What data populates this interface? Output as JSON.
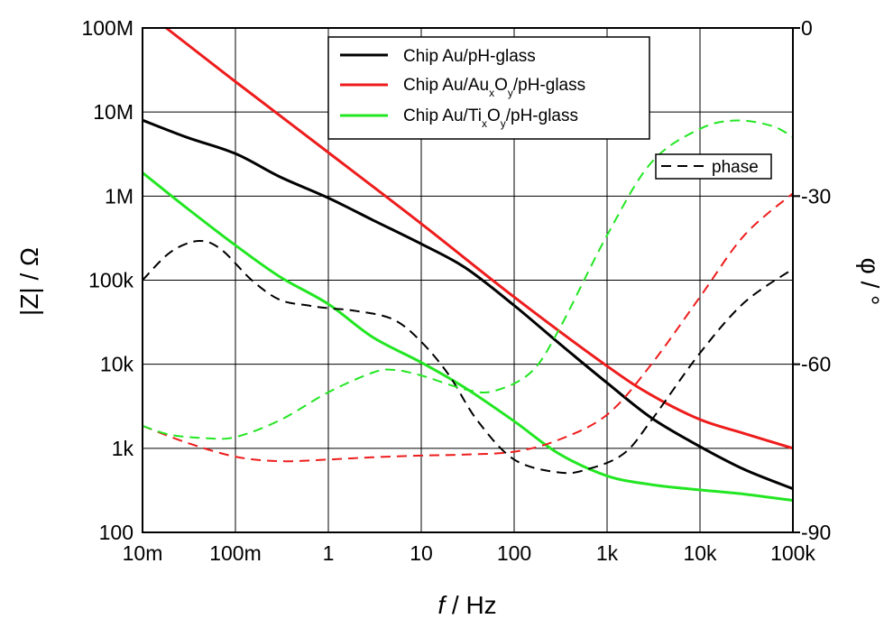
{
  "chart_data": {
    "type": "line",
    "x_axis": {
      "label_italic": "f",
      "label_rest": " / Hz",
      "scale": "log",
      "range": [
        0.01,
        100000
      ],
      "tick_values": [
        0.01,
        0.1,
        1,
        10,
        100,
        1000,
        10000,
        100000
      ],
      "tick_labels": [
        "10m",
        "100m",
        "1",
        "10",
        "100",
        "1k",
        "10k",
        "100k"
      ]
    },
    "y_left": {
      "label": "|Z| / Ω",
      "scale": "log",
      "range": [
        100,
        100000000
      ],
      "tick_values": [
        100,
        1000,
        10000,
        100000,
        1000000,
        10000000,
        100000000
      ],
      "tick_labels": [
        "100",
        "1k",
        "10k",
        "100k",
        "1M",
        "10M",
        "100M"
      ]
    },
    "y_right": {
      "label": "φ / °",
      "scale": "linear",
      "range": [
        -90,
        0
      ],
      "tick_values": [
        -90,
        -60,
        -30,
        0
      ],
      "tick_labels": [
        "-90",
        "-60",
        "-30",
        "0"
      ]
    },
    "grid": true,
    "legend": {
      "placement": "top-center",
      "entries": [
        {
          "series": "black",
          "parts": [
            "Chip Au/pH-glass"
          ]
        },
        {
          "series": "red",
          "parts": [
            "Chip Au/Au",
            "x",
            "O",
            "y",
            "/pH-glass"
          ]
        },
        {
          "series": "green",
          "parts": [
            "Chip Au/Ti",
            "x",
            "O",
            "y",
            "/pH-glass"
          ]
        }
      ]
    },
    "phase_legend": {
      "placement": "top-right",
      "label": "phase",
      "style": "dashed"
    },
    "colors": {
      "black": "#000000",
      "red": "#ee1c1c",
      "green": "#22e622"
    },
    "series": [
      {
        "key": "black",
        "axis": "left",
        "style": "solid",
        "points": [
          [
            0.01,
            8000000
          ],
          [
            0.03,
            5000000
          ],
          [
            0.1,
            3200000
          ],
          [
            0.3,
            1700000
          ],
          [
            1,
            950000
          ],
          [
            3,
            520000
          ],
          [
            10,
            270000
          ],
          [
            30,
            140000
          ],
          [
            100,
            50000
          ],
          [
            300,
            18000
          ],
          [
            1000,
            6000
          ],
          [
            3000,
            2300
          ],
          [
            10000,
            1050
          ],
          [
            30000,
            560
          ],
          [
            100000,
            330
          ]
        ]
      },
      {
        "key": "red",
        "axis": "left",
        "style": "solid",
        "points": [
          [
            0.018,
            100000000
          ],
          [
            0.1,
            23000000
          ],
          [
            1,
            3300000
          ],
          [
            10,
            470000
          ],
          [
            100,
            63000
          ],
          [
            1000,
            9500
          ],
          [
            3000,
            4300
          ],
          [
            10000,
            2200
          ],
          [
            30000,
            1500
          ],
          [
            100000,
            1000
          ]
        ]
      },
      {
        "key": "green",
        "axis": "left",
        "style": "solid",
        "points": [
          [
            0.01,
            1900000
          ],
          [
            0.03,
            720000
          ],
          [
            0.1,
            260000
          ],
          [
            0.3,
            110000
          ],
          [
            1,
            52000
          ],
          [
            3,
            21000
          ],
          [
            10,
            10500
          ],
          [
            30,
            5200
          ],
          [
            100,
            2100
          ],
          [
            300,
            870
          ],
          [
            1000,
            470
          ],
          [
            3000,
            370
          ],
          [
            10000,
            320
          ],
          [
            30000,
            285
          ],
          [
            100000,
            240
          ]
        ]
      },
      {
        "key": "black",
        "axis": "right",
        "style": "dashed",
        "points": [
          [
            0.01,
            -45
          ],
          [
            0.02,
            -40
          ],
          [
            0.04,
            -38
          ],
          [
            0.07,
            -39.5
          ],
          [
            0.15,
            -45
          ],
          [
            0.3,
            -48.5
          ],
          [
            0.6,
            -49.5
          ],
          [
            1,
            -50
          ],
          [
            2,
            -50.5
          ],
          [
            5,
            -52
          ],
          [
            10,
            -56
          ],
          [
            20,
            -62
          ],
          [
            40,
            -70
          ],
          [
            100,
            -77
          ],
          [
            300,
            -79.3
          ],
          [
            600,
            -78.8
          ],
          [
            1500,
            -76
          ],
          [
            3000,
            -70
          ],
          [
            10000,
            -58
          ],
          [
            30000,
            -49
          ],
          [
            100000,
            -43
          ]
        ]
      },
      {
        "key": "red",
        "axis": "right",
        "style": "dashed",
        "points": [
          [
            0.01,
            -71
          ],
          [
            0.03,
            -74
          ],
          [
            0.1,
            -76.5
          ],
          [
            0.3,
            -77.3
          ],
          [
            1,
            -77
          ],
          [
            3,
            -76.6
          ],
          [
            10,
            -76.3
          ],
          [
            30,
            -76.1
          ],
          [
            100,
            -75.6
          ],
          [
            300,
            -73.5
          ],
          [
            1000,
            -69
          ],
          [
            3000,
            -60
          ],
          [
            10000,
            -48
          ],
          [
            30000,
            -37
          ],
          [
            100000,
            -29.5
          ]
        ]
      },
      {
        "key": "green",
        "axis": "right",
        "style": "dashed",
        "points": [
          [
            0.01,
            -71
          ],
          [
            0.02,
            -72.6
          ],
          [
            0.05,
            -73.2
          ],
          [
            0.1,
            -73
          ],
          [
            0.3,
            -70
          ],
          [
            1,
            -65
          ],
          [
            3,
            -61.5
          ],
          [
            5,
            -61
          ],
          [
            10,
            -62
          ],
          [
            30,
            -64.5
          ],
          [
            60,
            -64.8
          ],
          [
            150,
            -61.5
          ],
          [
            300,
            -54
          ],
          [
            1000,
            -37
          ],
          [
            3000,
            -24
          ],
          [
            10000,
            -18
          ],
          [
            25000,
            -16.5
          ],
          [
            60000,
            -17.5
          ],
          [
            100000,
            -19.5
          ]
        ]
      }
    ]
  }
}
